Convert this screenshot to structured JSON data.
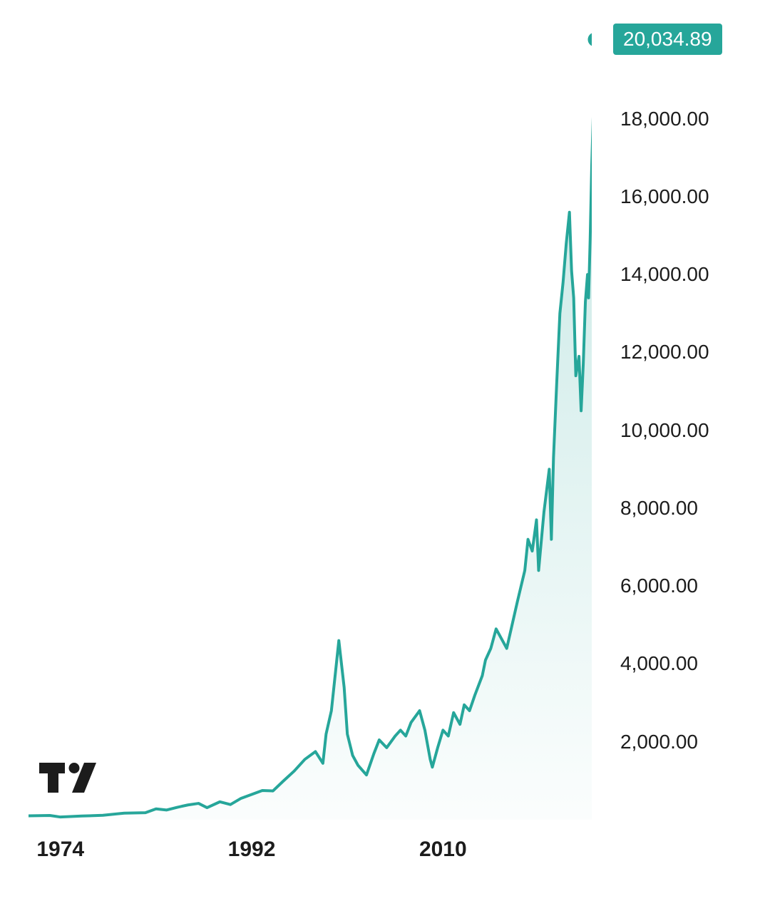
{
  "chart": {
    "type": "area-line",
    "background_color": "#ffffff",
    "line_color": "#26a69a",
    "line_width": 4,
    "area_fill_top": "rgba(38,166,154,0.28)",
    "area_fill_bottom": "rgba(38,166,154,0.02)",
    "current_value_label": "20,034.89",
    "current_value_numeric": 20034.89,
    "current_badge_bg": "#26a69a",
    "current_badge_text_color": "#ffffff",
    "end_dot_color": "#26a69a",
    "end_dot_radius": 10,
    "y_axis": {
      "min": 0,
      "max": 20500,
      "ticks": [
        {
          "value": 2000,
          "label": "2,000.00"
        },
        {
          "value": 4000,
          "label": "4,000.00"
        },
        {
          "value": 6000,
          "label": "6,000.00"
        },
        {
          "value": 8000,
          "label": "8,000.00"
        },
        {
          "value": 10000,
          "label": "10,000.00"
        },
        {
          "value": 12000,
          "label": "12,000.00"
        },
        {
          "value": 14000,
          "label": "14,000.00"
        },
        {
          "value": 16000,
          "label": "16,000.00"
        },
        {
          "value": 18000,
          "label": "18,000.00"
        }
      ],
      "tick_fontsize": 28,
      "tick_color": "#1c1c1c"
    },
    "x_axis": {
      "min": 1971,
      "max": 2024,
      "ticks": [
        {
          "value": 1974,
          "label": "1974"
        },
        {
          "value": 1992,
          "label": "1992"
        },
        {
          "value": 2010,
          "label": "2010"
        }
      ],
      "tick_fontsize": 30,
      "tick_weight": 700,
      "tick_color": "#1c1c1c"
    },
    "series": [
      {
        "x": 1971,
        "y": 100
      },
      {
        "x": 1973,
        "y": 110
      },
      {
        "x": 1974,
        "y": 70
      },
      {
        "x": 1976,
        "y": 95
      },
      {
        "x": 1978,
        "y": 115
      },
      {
        "x": 1980,
        "y": 170
      },
      {
        "x": 1982,
        "y": 180
      },
      {
        "x": 1983,
        "y": 280
      },
      {
        "x": 1984,
        "y": 250
      },
      {
        "x": 1985,
        "y": 320
      },
      {
        "x": 1986,
        "y": 380
      },
      {
        "x": 1987,
        "y": 420
      },
      {
        "x": 1987.8,
        "y": 310
      },
      {
        "x": 1989,
        "y": 460
      },
      {
        "x": 1990,
        "y": 390
      },
      {
        "x": 1991,
        "y": 550
      },
      {
        "x": 1992,
        "y": 650
      },
      {
        "x": 1993,
        "y": 750
      },
      {
        "x": 1994,
        "y": 740
      },
      {
        "x": 1995,
        "y": 1000
      },
      {
        "x": 1996,
        "y": 1250
      },
      {
        "x": 1997,
        "y": 1550
      },
      {
        "x": 1998,
        "y": 1750
      },
      {
        "x": 1998.7,
        "y": 1450
      },
      {
        "x": 1999,
        "y": 2200
      },
      {
        "x": 1999.5,
        "y": 2800
      },
      {
        "x": 2000.2,
        "y": 4600
      },
      {
        "x": 2000.7,
        "y": 3400
      },
      {
        "x": 2001,
        "y": 2200
      },
      {
        "x": 2001.5,
        "y": 1650
      },
      {
        "x": 2002,
        "y": 1400
      },
      {
        "x": 2002.8,
        "y": 1150
      },
      {
        "x": 2003.5,
        "y": 1700
      },
      {
        "x": 2004,
        "y": 2050
      },
      {
        "x": 2004.7,
        "y": 1850
      },
      {
        "x": 2005.5,
        "y": 2150
      },
      {
        "x": 2006,
        "y": 2300
      },
      {
        "x": 2006.5,
        "y": 2150
      },
      {
        "x": 2007,
        "y": 2500
      },
      {
        "x": 2007.8,
        "y": 2800
      },
      {
        "x": 2008.3,
        "y": 2300
      },
      {
        "x": 2008.8,
        "y": 1550
      },
      {
        "x": 2009,
        "y": 1350
      },
      {
        "x": 2009.5,
        "y": 1850
      },
      {
        "x": 2010,
        "y": 2300
      },
      {
        "x": 2010.5,
        "y": 2150
      },
      {
        "x": 2011,
        "y": 2750
      },
      {
        "x": 2011.6,
        "y": 2450
      },
      {
        "x": 2012,
        "y": 2950
      },
      {
        "x": 2012.5,
        "y": 2800
      },
      {
        "x": 2013,
        "y": 3200
      },
      {
        "x": 2013.7,
        "y": 3700
      },
      {
        "x": 2014,
        "y": 4100
      },
      {
        "x": 2014.5,
        "y": 4400
      },
      {
        "x": 2015,
        "y": 4900
      },
      {
        "x": 2015.6,
        "y": 4600
      },
      {
        "x": 2016,
        "y": 4400
      },
      {
        "x": 2016.5,
        "y": 5000
      },
      {
        "x": 2017,
        "y": 5600
      },
      {
        "x": 2017.7,
        "y": 6400
      },
      {
        "x": 2018,
        "y": 7200
      },
      {
        "x": 2018.4,
        "y": 6900
      },
      {
        "x": 2018.8,
        "y": 7700
      },
      {
        "x": 2019,
        "y": 6400
      },
      {
        "x": 2019.5,
        "y": 7900
      },
      {
        "x": 2020,
        "y": 9000
      },
      {
        "x": 2020.2,
        "y": 7200
      },
      {
        "x": 2020.4,
        "y": 9300
      },
      {
        "x": 2020.7,
        "y": 11200
      },
      {
        "x": 2021,
        "y": 13000
      },
      {
        "x": 2021.3,
        "y": 13800
      },
      {
        "x": 2021.6,
        "y": 14800
      },
      {
        "x": 2021.9,
        "y": 15600
      },
      {
        "x": 2022.1,
        "y": 14100
      },
      {
        "x": 2022.3,
        "y": 13400
      },
      {
        "x": 2022.5,
        "y": 11400
      },
      {
        "x": 2022.8,
        "y": 11900
      },
      {
        "x": 2023,
        "y": 10500
      },
      {
        "x": 2023.2,
        "y": 11700
      },
      {
        "x": 2023.4,
        "y": 13300
      },
      {
        "x": 2023.6,
        "y": 14000
      },
      {
        "x": 2023.7,
        "y": 13400
      },
      {
        "x": 2023.85,
        "y": 14900
      },
      {
        "x": 2024,
        "y": 16800
      },
      {
        "x": 2024.15,
        "y": 18200
      },
      {
        "x": 2024.3,
        "y": 20034.89
      }
    ]
  },
  "logo": {
    "color": "#1c1c1c"
  }
}
